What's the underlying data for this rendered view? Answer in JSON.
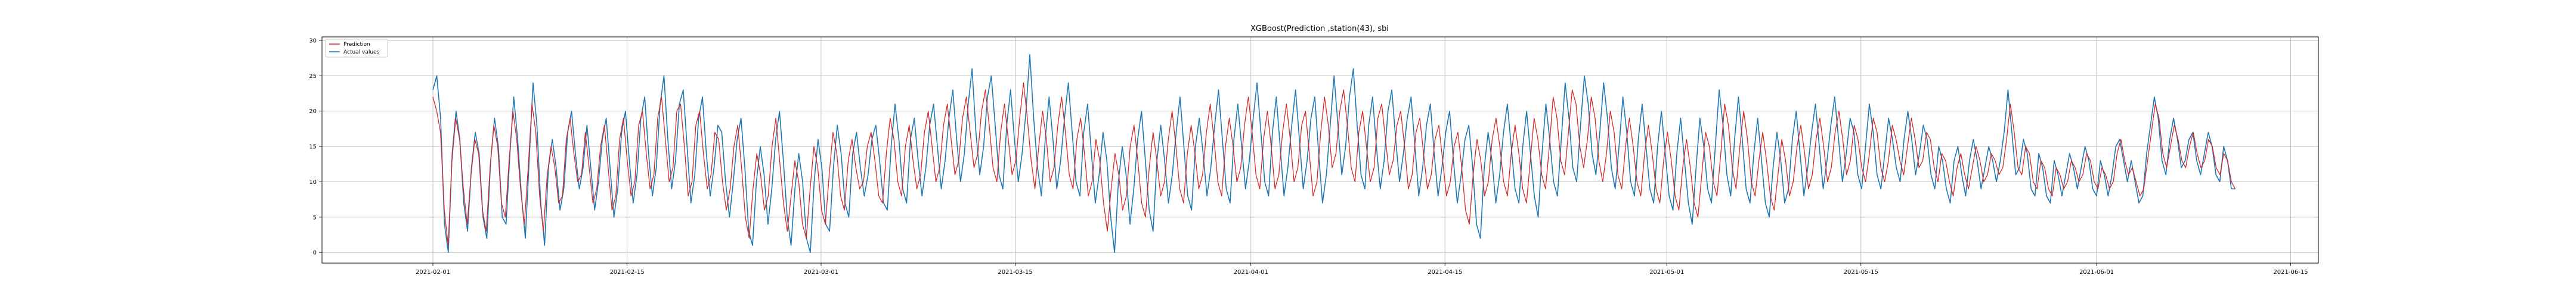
{
  "chart_data": {
    "type": "line",
    "title": "XGBoost(Prediction ,station(43), sbi",
    "xlabel": "",
    "ylabel": "",
    "x_tick_labels": [
      "2021-02-01",
      "2021-02-15",
      "2021-03-01",
      "2021-03-15",
      "2021-04-01",
      "2021-04-15",
      "2021-05-01",
      "2021-05-15",
      "2021-06-01",
      "2021-06-15"
    ],
    "x_range": [
      "2021-01-24",
      "2021-06-17"
    ],
    "y_ticks": [
      0,
      5,
      10,
      15,
      20,
      25,
      30
    ],
    "ylim": [
      -1.5,
      30.5
    ],
    "grid": true,
    "legend_position": "top-left",
    "data_start": "2021-02-01",
    "data_end": "2021-06-11",
    "series": [
      {
        "name": "Prediction",
        "color": "#d62728",
        "values": [
          22,
          20,
          17,
          6,
          1,
          13,
          19,
          16,
          9,
          4,
          11,
          16,
          14,
          6,
          3,
          12,
          18,
          15,
          7,
          5,
          13,
          20,
          16,
          9,
          4,
          12,
          21,
          17,
          8,
          3,
          11,
          15,
          12,
          7,
          8,
          16,
          19,
          14,
          10,
          11,
          17,
          12,
          7,
          9,
          15,
          18,
          12,
          6,
          8,
          16,
          19,
          13,
          8,
          10,
          18,
          20,
          14,
          9,
          11,
          19,
          22,
          16,
          10,
          12,
          20,
          21,
          15,
          8,
          10,
          18,
          20,
          14,
          9,
          11,
          17,
          16,
          10,
          6,
          9,
          15,
          18,
          12,
          5,
          2,
          9,
          14,
          11,
          6,
          8,
          15,
          19,
          13,
          7,
          3,
          8,
          13,
          10,
          4,
          2,
          9,
          15,
          12,
          6,
          4,
          11,
          17,
          14,
          8,
          6,
          13,
          16,
          12,
          9,
          10,
          15,
          17,
          13,
          8,
          7,
          14,
          19,
          16,
          10,
          8,
          15,
          18,
          13,
          9,
          11,
          17,
          20,
          15,
          10,
          12,
          18,
          21,
          16,
          11,
          13,
          19,
          22,
          17,
          12,
          14,
          20,
          23,
          18,
          12,
          10,
          17,
          21,
          16,
          11,
          13,
          19,
          24,
          19,
          13,
          9,
          15,
          20,
          16,
          10,
          12,
          18,
          22,
          17,
          11,
          9,
          16,
          19,
          14,
          8,
          10,
          16,
          13,
          7,
          3,
          9,
          14,
          11,
          6,
          8,
          15,
          18,
          13,
          7,
          5,
          12,
          17,
          13,
          8,
          10,
          16,
          20,
          15,
          9,
          7,
          14,
          18,
          14,
          9,
          11,
          17,
          21,
          16,
          10,
          8,
          15,
          19,
          15,
          10,
          12,
          18,
          22,
          17,
          11,
          9,
          16,
          20,
          15,
          9,
          11,
          17,
          21,
          16,
          10,
          12,
          18,
          20,
          14,
          8,
          10,
          17,
          22,
          18,
          12,
          14,
          20,
          23,
          18,
          12,
          10,
          17,
          20,
          15,
          10,
          12,
          19,
          21,
          16,
          11,
          13,
          18,
          20,
          15,
          9,
          11,
          17,
          19,
          14,
          9,
          11,
          16,
          18,
          13,
          8,
          10,
          15,
          17,
          12,
          6,
          4,
          11,
          16,
          13,
          8,
          10,
          16,
          19,
          15,
          10,
          8,
          14,
          18,
          14,
          9,
          7,
          13,
          19,
          16,
          11,
          9,
          15,
          22,
          19,
          13,
          11,
          17,
          23,
          21,
          15,
          12,
          16,
          22,
          19,
          13,
          10,
          14,
          20,
          17,
          11,
          9,
          15,
          19,
          15,
          10,
          8,
          14,
          18,
          14,
          9,
          7,
          13,
          17,
          13,
          8,
          6,
          12,
          16,
          12,
          7,
          5,
          11,
          17,
          15,
          10,
          8,
          14,
          21,
          18,
          12,
          9,
          15,
          20,
          16,
          10,
          8,
          13,
          17,
          13,
          8,
          6,
          11,
          16,
          13,
          8,
          10,
          15,
          18,
          14,
          9,
          11,
          16,
          19,
          15,
          10,
          12,
          17,
          20,
          16,
          11,
          13,
          18,
          16,
          12,
          10,
          14,
          19,
          17,
          12,
          10,
          13,
          18,
          16,
          13,
          11,
          15,
          19,
          16,
          12,
          13,
          17,
          16,
          12,
          10,
          14,
          13,
          10,
          8,
          12,
          14,
          11,
          9,
          12,
          15,
          13,
          10,
          11,
          14,
          13,
          11,
          12,
          16,
          21,
          17,
          12,
          11,
          15,
          14,
          10,
          9,
          13,
          12,
          9,
          8,
          12,
          11,
          9,
          10,
          13,
          12,
          10,
          11,
          14,
          13,
          10,
          9,
          12,
          11,
          9,
          10,
          14,
          16,
          13,
          11,
          12,
          10,
          8,
          9,
          13,
          17,
          21,
          19,
          14,
          12,
          15,
          18,
          16,
          13,
          12,
          15,
          17,
          14,
          12,
          13,
          16,
          15,
          12,
          11,
          14,
          13,
          10,
          9
        ]
      },
      {
        "name": "Actual values",
        "color": "#1f77b4",
        "values": [
          23,
          25,
          19,
          4,
          0,
          14,
          20,
          16,
          7,
          3,
          12,
          17,
          14,
          5,
          2,
          13,
          19,
          15,
          5,
          4,
          14,
          22,
          16,
          8,
          2,
          13,
          24,
          18,
          7,
          1,
          12,
          16,
          12,
          6,
          9,
          17,
          20,
          14,
          9,
          12,
          18,
          12,
          6,
          10,
          16,
          19,
          12,
          5,
          9,
          17,
          20,
          13,
          7,
          11,
          19,
          22,
          14,
          8,
          12,
          21,
          25,
          16,
          9,
          13,
          21,
          23,
          15,
          7,
          11,
          19,
          22,
          14,
          8,
          12,
          18,
          17,
          10,
          5,
          10,
          16,
          19,
          12,
          3,
          1,
          10,
          15,
          11,
          4,
          9,
          16,
          20,
          13,
          5,
          1,
          9,
          14,
          10,
          2,
          0,
          10,
          16,
          12,
          4,
          3,
          12,
          18,
          14,
          7,
          5,
          14,
          17,
          12,
          8,
          11,
          16,
          18,
          13,
          7,
          6,
          15,
          21,
          16,
          9,
          7,
          16,
          19,
          13,
          8,
          12,
          18,
          21,
          15,
          9,
          13,
          19,
          23,
          16,
          10,
          14,
          21,
          26,
          17,
          11,
          15,
          22,
          25,
          18,
          11,
          9,
          18,
          23,
          16,
          10,
          14,
          20,
          28,
          19,
          12,
          8,
          16,
          22,
          16,
          9,
          13,
          19,
          24,
          17,
          10,
          8,
          17,
          21,
          14,
          7,
          11,
          17,
          13,
          5,
          0,
          10,
          15,
          11,
          4,
          9,
          16,
          20,
          13,
          6,
          3,
          13,
          18,
          13,
          7,
          11,
          17,
          22,
          15,
          8,
          6,
          15,
          19,
          14,
          8,
          12,
          18,
          23,
          16,
          9,
          7,
          16,
          21,
          15,
          9,
          13,
          19,
          24,
          17,
          10,
          8,
          17,
          22,
          15,
          8,
          12,
          18,
          23,
          16,
          9,
          13,
          19,
          22,
          14,
          7,
          11,
          18,
          25,
          18,
          11,
          15,
          22,
          26,
          18,
          11,
          9,
          18,
          22,
          15,
          9,
          13,
          20,
          23,
          16,
          10,
          14,
          19,
          22,
          15,
          8,
          12,
          18,
          21,
          14,
          8,
          12,
          17,
          20,
          13,
          7,
          11,
          16,
          18,
          12,
          4,
          2,
          12,
          17,
          13,
          7,
          11,
          17,
          21,
          15,
          9,
          7,
          15,
          20,
          14,
          8,
          5,
          14,
          21,
          16,
          10,
          8,
          16,
          24,
          19,
          12,
          10,
          18,
          25,
          21,
          14,
          11,
          17,
          24,
          19,
          12,
          9,
          15,
          22,
          17,
          10,
          8,
          16,
          21,
          15,
          9,
          7,
          15,
          20,
          14,
          8,
          6,
          14,
          19,
          13,
          7,
          4,
          12,
          19,
          15,
          9,
          7,
          15,
          23,
          18,
          11,
          8,
          16,
          22,
          16,
          9,
          7,
          14,
          19,
          13,
          7,
          5,
          12,
          17,
          13,
          7,
          9,
          16,
          20,
          14,
          8,
          12,
          17,
          21,
          15,
          9,
          13,
          18,
          22,
          16,
          10,
          14,
          19,
          17,
          11,
          9,
          15,
          21,
          17,
          11,
          9,
          14,
          19,
          16,
          12,
          10,
          16,
          20,
          16,
          11,
          14,
          18,
          16,
          11,
          9,
          15,
          13,
          9,
          7,
          13,
          15,
          11,
          8,
          13,
          16,
          13,
          9,
          12,
          15,
          13,
          10,
          13,
          17,
          23,
          17,
          11,
          12,
          16,
          14,
          9,
          8,
          14,
          12,
          8,
          7,
          13,
          11,
          8,
          11,
          14,
          12,
          9,
          12,
          15,
          13,
          9,
          8,
          13,
          11,
          8,
          11,
          15,
          16,
          13,
          10,
          13,
          10,
          7,
          8,
          14,
          18,
          22,
          19,
          13,
          11,
          16,
          19,
          16,
          12,
          13,
          16,
          17,
          13,
          11,
          14,
          17,
          15,
          11,
          10,
          15,
          13,
          9,
          9
        ]
      }
    ]
  }
}
